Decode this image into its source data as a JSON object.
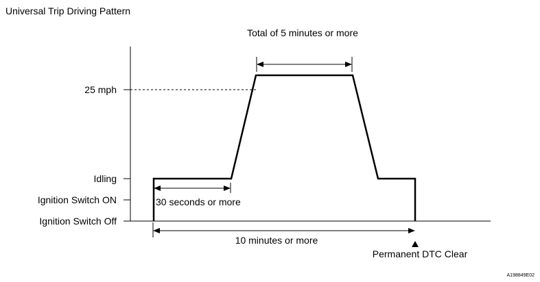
{
  "title": "Universal Trip Driving Pattern",
  "y_axis_labels": {
    "speed": "25 mph",
    "idling": "Idling",
    "ignition_on": "Ignition Switch ON",
    "ignition_off": "Ignition Switch Off"
  },
  "annotations": {
    "total_duration": "Total of 5 minutes or more",
    "idle_duration": "30 seconds or more",
    "overall_duration": "10 minutes or more",
    "end_marker": "Permanent DTC Clear"
  },
  "figure_code": "A198849E02"
}
